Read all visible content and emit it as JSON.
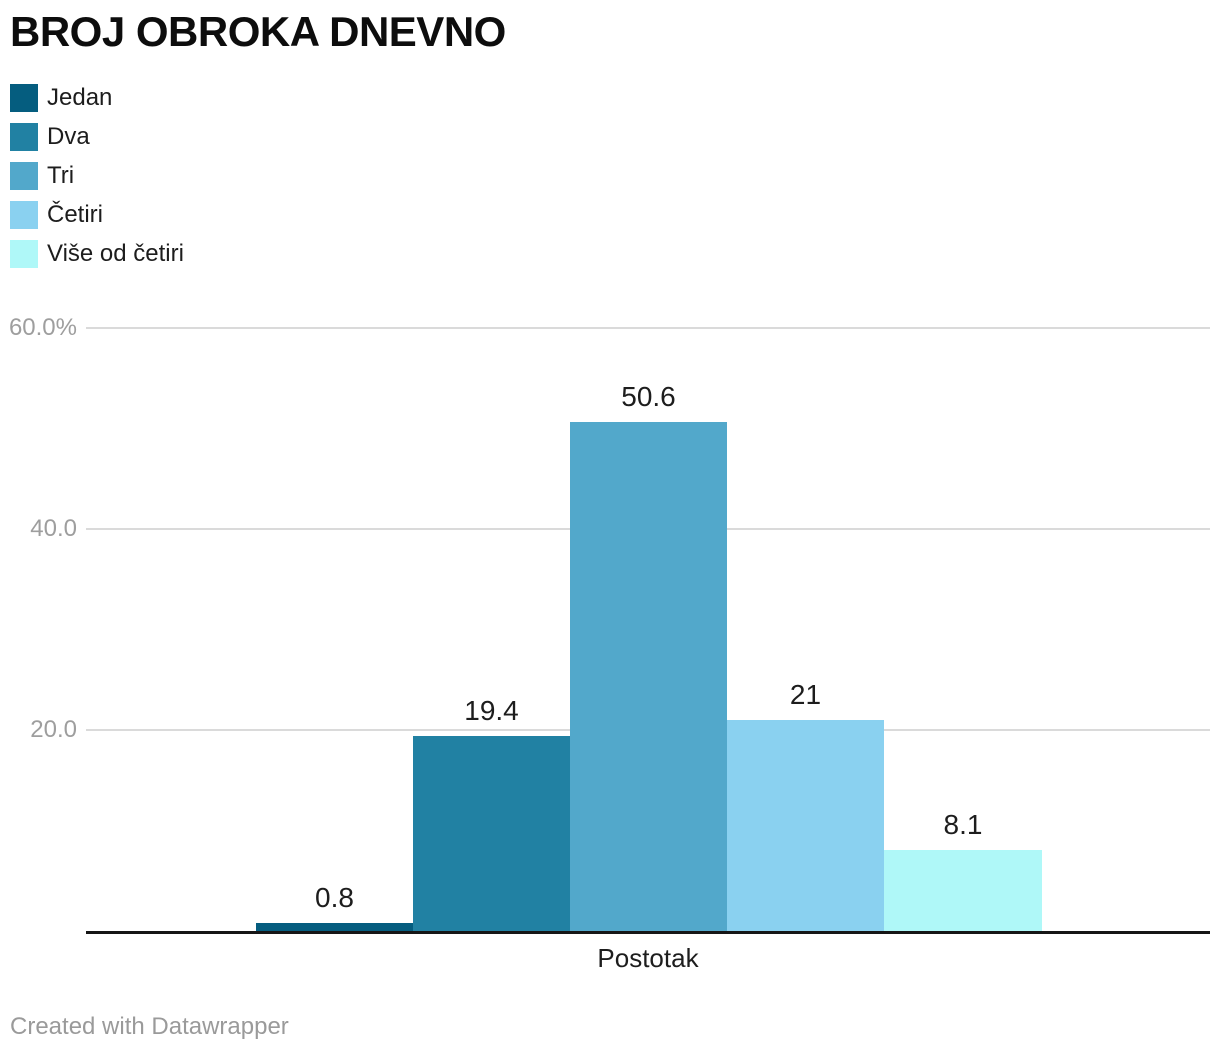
{
  "title": "BROJ OBROKA DNEVNO",
  "x_axis_label": "Postotak",
  "footer_credit": "Created with Datawrapper",
  "chart_data": {
    "type": "bar",
    "title": "BROJ OBROKA DNEVNO",
    "categories": [
      "Jedan",
      "Dva",
      "Tri",
      "Četiri",
      "Više od četiri"
    ],
    "values": [
      0.8,
      19.4,
      50.6,
      21,
      8.1
    ],
    "value_labels": [
      "0.8",
      "19.4",
      "50.6",
      "21",
      "8.1"
    ],
    "series_colors": [
      "#055d7f",
      "#2181a3",
      "#52a8cb",
      "#8ad1f0",
      "#aff8f8"
    ],
    "xlabel": "Postotak",
    "ylabel": "",
    "ylim": [
      0,
      60
    ],
    "yticks": [
      {
        "value": 20,
        "label": "20.0"
      },
      {
        "value": 40,
        "label": "40.0"
      },
      {
        "value": 60,
        "label": "60.0%"
      }
    ],
    "grid": true,
    "legend_position": "top-left"
  },
  "colors": {
    "background": "#ffffff",
    "grid": "#dadada",
    "axis_line": "#161616",
    "tick_label": "#9e9e9e",
    "value_label": "#1d1d1d",
    "footer": "#9a9a9a"
  }
}
